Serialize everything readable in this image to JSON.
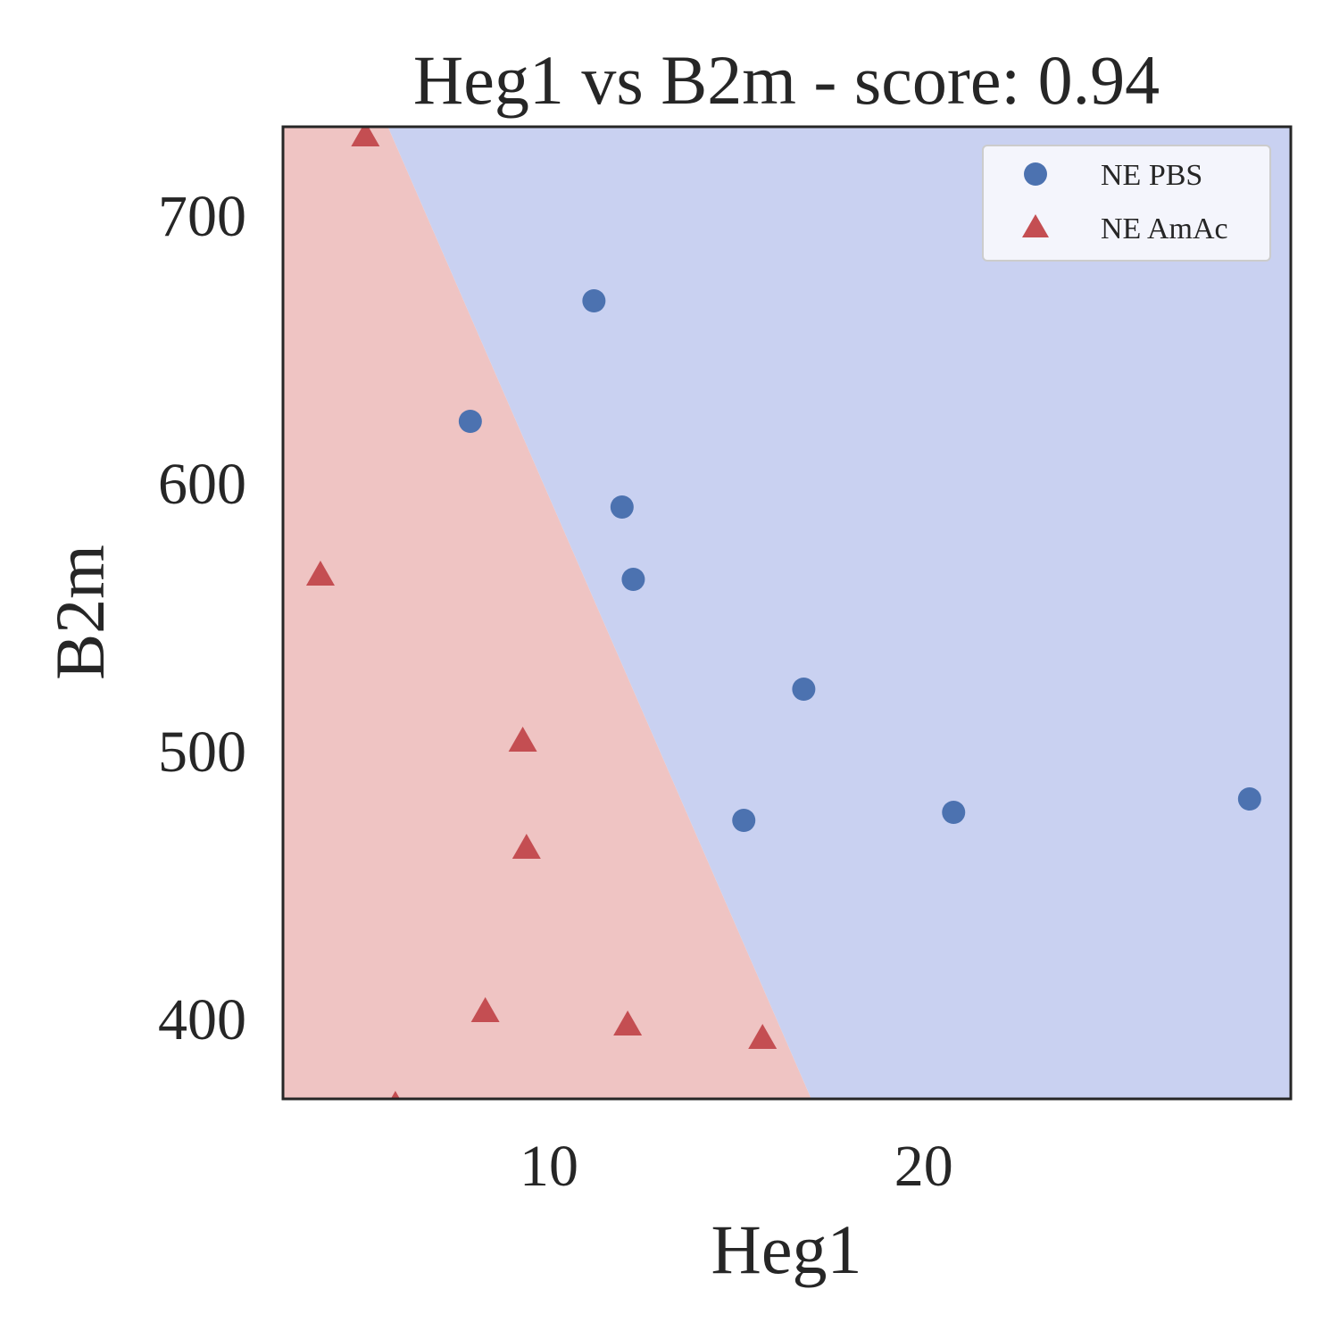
{
  "chart_data": {
    "type": "scatter",
    "title": "Heg1 vs B2m - score: 0.94",
    "xlabel": "Heg1",
    "ylabel": "B2m",
    "xlim": [
      2.9,
      29.8
    ],
    "ylim": [
      370,
      733
    ],
    "xticks": [
      10,
      20
    ],
    "yticks": [
      400,
      500,
      600,
      700
    ],
    "grid": false,
    "legend": {
      "position": "top-right"
    },
    "decision_boundary": {
      "line": [
        [
          5.7,
          733
        ],
        [
          17.0,
          370
        ]
      ],
      "region_left_class": "NE AmAc",
      "region_right_class": "NE PBS"
    },
    "colors": {
      "ne_pbs": "#4c72b0",
      "ne_amac": "#c44e52",
      "region_pbs": "#c9d1f1",
      "region_amac": "#efc4c3",
      "legend_bg": "#f4f5fc",
      "text": "#262626"
    },
    "series": [
      {
        "name": "NE PBS",
        "marker": "circle",
        "points": [
          [
            11.2,
            668
          ],
          [
            7.9,
            623
          ],
          [
            11.95,
            591
          ],
          [
            12.25,
            564
          ],
          [
            16.8,
            523
          ],
          [
            15.2,
            474
          ],
          [
            20.8,
            477
          ],
          [
            28.7,
            482
          ]
        ]
      },
      {
        "name": "NE AmAc",
        "marker": "triangle",
        "points": [
          [
            5.1,
            729
          ],
          [
            3.9,
            565
          ],
          [
            9.3,
            503
          ],
          [
            9.4,
            463
          ],
          [
            8.3,
            402
          ],
          [
            12.1,
            397
          ],
          [
            15.7,
            392
          ],
          [
            5.9,
            367
          ]
        ]
      }
    ]
  }
}
